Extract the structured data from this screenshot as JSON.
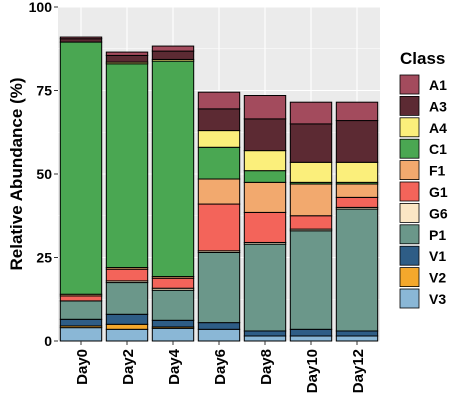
{
  "chart_data": {
    "type": "bar",
    "stacked": true,
    "categories": [
      "Day0",
      "Day2",
      "Day4",
      "Day6",
      "Day8",
      "Day10",
      "Day12"
    ],
    "ylabel": "Relative Abundance (%)",
    "ylim": [
      0,
      100
    ],
    "yticks": [
      "0",
      "25",
      "50",
      "75",
      "100"
    ],
    "grid": true,
    "legend": {
      "title": "Class",
      "position": "right"
    },
    "series": [
      {
        "name": "V3",
        "color": "#8ab7d6",
        "values": [
          4.0,
          3.5,
          3.8,
          3.5,
          1.5,
          1.5,
          1.5
        ]
      },
      {
        "name": "V2",
        "color": "#f4a82c",
        "values": [
          0.5,
          1.5,
          0.4,
          0.0,
          0.0,
          0.0,
          0.0
        ]
      },
      {
        "name": "V1",
        "color": "#2e5d86",
        "values": [
          2.0,
          3.0,
          2.0,
          2.0,
          1.5,
          2.0,
          1.5
        ]
      },
      {
        "name": "P1",
        "color": "#6b978a",
        "values": [
          5.5,
          9.5,
          9.0,
          21.0,
          26.0,
          29.5,
          36.5
        ]
      },
      {
        "name": "G6",
        "color": "#fbe6c4",
        "values": [
          0.0,
          0.5,
          0.6,
          0.5,
          0.5,
          0.5,
          0.5
        ]
      },
      {
        "name": "G1",
        "color": "#f3645a",
        "values": [
          1.5,
          3.5,
          3.0,
          14.0,
          9.0,
          4.0,
          3.0
        ]
      },
      {
        "name": "F1",
        "color": "#f2a96e",
        "values": [
          0.5,
          0.5,
          0.5,
          7.5,
          9.0,
          9.5,
          4.0
        ]
      },
      {
        "name": "C1",
        "color": "#4aa752",
        "values": [
          75.5,
          61.0,
          64.5,
          9.5,
          3.5,
          0.5,
          0.5
        ]
      },
      {
        "name": "A4",
        "color": "#fbef7b",
        "values": [
          0.0,
          0.5,
          0.5,
          5.0,
          6.0,
          6.0,
          6.0
        ]
      },
      {
        "name": "A3",
        "color": "#5c2a33",
        "values": [
          1.0,
          2.0,
          2.5,
          6.5,
          9.5,
          11.5,
          12.5
        ]
      },
      {
        "name": "A1",
        "color": "#a34b5d",
        "values": [
          0.5,
          1.0,
          1.5,
          5.0,
          7.0,
          6.5,
          5.5
        ]
      }
    ],
    "legend_order": [
      "A1",
      "A3",
      "A4",
      "C1",
      "F1",
      "G1",
      "G6",
      "P1",
      "V1",
      "V2",
      "V3"
    ]
  }
}
